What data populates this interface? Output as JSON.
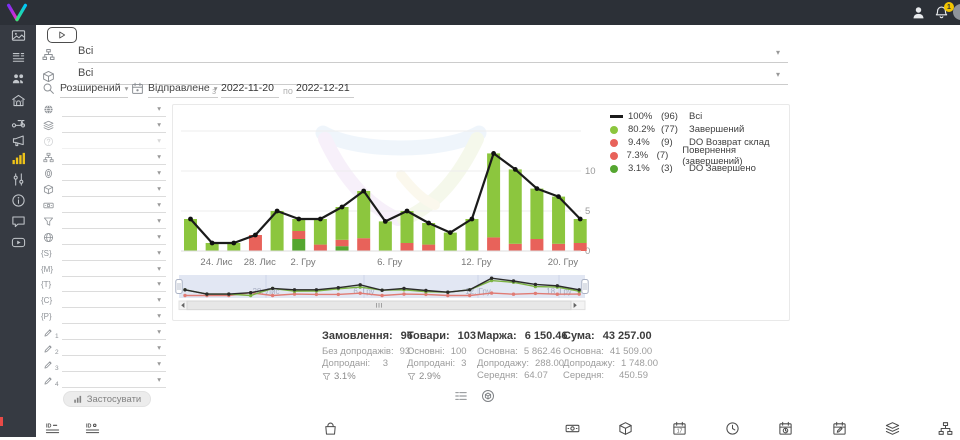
{
  "topbar": {
    "notifications": {
      "count": "1"
    },
    "play_button": {
      "icon": "play-icon"
    },
    "category_select": {
      "icon": "sitemap-icon",
      "value": "Всі"
    },
    "product_select": {
      "icon": "package-icon",
      "value": "Всі"
    },
    "search": {
      "icon": "search-icon",
      "mode": "Розширений"
    },
    "date_filter": {
      "icon": "calendar-icon",
      "type_label": "Відправлене",
      "from_label": "з",
      "from": "2022-11-20",
      "to_label": "по",
      "to": "2022-12-21"
    }
  },
  "sidebar": {
    "active": "analytics",
    "items": [
      {
        "name": "gallery",
        "icon": "gallery-icon"
      },
      {
        "name": "feed",
        "icon": "orders-list-icon"
      },
      {
        "name": "customers",
        "icon": "customers-icon"
      },
      {
        "name": "market",
        "icon": "storefront-icon"
      },
      {
        "name": "delivery",
        "icon": "scooter-icon"
      },
      {
        "name": "marketing",
        "icon": "megaphone-icon"
      },
      {
        "name": "analytics",
        "icon": "bar-chart-icon"
      },
      {
        "name": "settings",
        "icon": "sliders-icon"
      },
      {
        "name": "info",
        "icon": "info-icon"
      },
      {
        "name": "chat",
        "icon": "chat-icon"
      },
      {
        "name": "tutorials",
        "icon": "play-icon"
      }
    ]
  },
  "filters": {
    "apply_label": "Застосувати",
    "rows": [
      {
        "icon": "globe-filled-icon"
      },
      {
        "icon": "layers-icon"
      },
      {
        "icon": "status-icon",
        "disabled": true
      },
      {
        "icon": "sitemap-icon"
      },
      {
        "icon": "badge-icon"
      },
      {
        "icon": "package-icon"
      },
      {
        "icon": "banknote-icon"
      },
      {
        "icon": "funnel-icon"
      },
      {
        "icon": "globe-icon"
      },
      {
        "icon": "brace-s-icon",
        "glyph": "{S}"
      },
      {
        "icon": "brace-m-icon",
        "glyph": "{M}"
      },
      {
        "icon": "brace-t-icon",
        "glyph": "{T}"
      },
      {
        "icon": "brace-c-icon",
        "glyph": "{C}"
      },
      {
        "icon": "brace-p-icon",
        "glyph": "{P}"
      },
      {
        "icon": "pencil-icon",
        "sub": "1"
      },
      {
        "icon": "pencil-icon",
        "sub": "2"
      },
      {
        "icon": "pencil-icon",
        "sub": "3"
      },
      {
        "icon": "pencil-icon",
        "sub": "4"
      }
    ]
  },
  "chart_data": {
    "type": "stacked-bar+line",
    "title": "",
    "ylim": [
      0,
      15
    ],
    "yticks": [
      "0",
      "5",
      "10"
    ],
    "grid": true,
    "legend_position": "top-right",
    "colors": {
      "green": "#8CC63E",
      "red": "#E8625A",
      "darkgreen": "#55A630",
      "line": "#1b1b1b"
    },
    "legend": [
      {
        "swatch": "line",
        "color": "#1b1b1b",
        "pct": "100%",
        "count": "(96)",
        "label": "Всі"
      },
      {
        "swatch": "dot",
        "color": "#8CC63E",
        "pct": "80.2%",
        "count": "(77)",
        "label": "Завершений"
      },
      {
        "swatch": "dot",
        "color": "#E8625A",
        "pct": "9.4%",
        "count": "(9)",
        "label": "DO Возврат склад"
      },
      {
        "swatch": "dot",
        "color": "#E8625A",
        "pct": "7.3%",
        "count": "(7)",
        "label": "Повернення (завершений)"
      },
      {
        "swatch": "dot",
        "color": "#55A630",
        "pct": "3.1%",
        "count": "(3)",
        "label": "DO Завершено"
      }
    ],
    "bars": [
      {
        "segments": [
          [
            "green",
            4
          ]
        ]
      },
      {
        "segments": [
          [
            "green",
            1
          ]
        ]
      },
      {
        "segments": [
          [
            "green",
            1
          ]
        ]
      },
      {
        "segments": [
          [
            "red",
            2
          ]
        ]
      },
      {
        "segments": [
          [
            "green",
            5
          ]
        ]
      },
      {
        "segments": [
          [
            "darkgreen",
            1.5
          ],
          [
            "red",
            1
          ],
          [
            "green",
            1.5
          ]
        ]
      },
      {
        "segments": [
          [
            "red",
            0.8
          ],
          [
            "green",
            3.2
          ]
        ]
      },
      {
        "segments": [
          [
            "darkgreen",
            0.6
          ],
          [
            "red",
            0.8
          ],
          [
            "green",
            4.1
          ]
        ]
      },
      {
        "segments": [
          [
            "red",
            1.6
          ],
          [
            "green",
            5.9
          ]
        ]
      },
      {
        "segments": [
          [
            "green",
            3.7
          ]
        ]
      },
      {
        "segments": [
          [
            "red",
            1
          ],
          [
            "green",
            4
          ]
        ]
      },
      {
        "segments": [
          [
            "red",
            0.8
          ],
          [
            "green",
            2.7
          ]
        ]
      },
      {
        "segments": [
          [
            "green",
            2.3
          ]
        ]
      },
      {
        "segments": [
          [
            "green",
            4
          ]
        ]
      },
      {
        "segments": [
          [
            "red",
            1.7
          ],
          [
            "green",
            10.5
          ]
        ]
      },
      {
        "segments": [
          [
            "red",
            0.9
          ],
          [
            "green",
            9.3
          ]
        ]
      },
      {
        "segments": [
          [
            "red",
            1.5
          ],
          [
            "green",
            6.3
          ]
        ]
      },
      {
        "segments": [
          [
            "red",
            0.9
          ],
          [
            "green",
            5.9
          ]
        ]
      },
      {
        "segments": [
          [
            "red",
            1
          ],
          [
            "green",
            3
          ]
        ]
      }
    ],
    "line_series": {
      "name": "Всі",
      "values": [
        4,
        1,
        1,
        2,
        5,
        4,
        4,
        5.5,
        7.5,
        3.7,
        5,
        3.5,
        2.3,
        4,
        12.2,
        10.2,
        7.8,
        6.8,
        4
      ]
    },
    "x_ticks": [
      {
        "label": "24. Лис",
        "i": 1.2
      },
      {
        "label": "28. Лис",
        "i": 3.2
      },
      {
        "label": "2. Гру",
        "i": 5.2
      },
      {
        "label": "6. Гру",
        "i": 9.2
      },
      {
        "label": "12. Гру",
        "i": 13.2
      },
      {
        "label": "20. Гру",
        "i": 17.2
      }
    ],
    "navigator": {
      "labels": [
        {
          "t": "28. Лис",
          "x": 93
        },
        {
          "t": "6. Гру",
          "x": 191
        },
        {
          "t": "12. Гру",
          "x": 305
        },
        {
          "t": "18. Гру",
          "x": 386
        }
      ]
    }
  },
  "stats": [
    {
      "title": "Замовлення:",
      "value": "96",
      "rows": [
        {
          "label": "Без допродажів:",
          "value": "93"
        },
        {
          "label": "Допродані:",
          "value": "3"
        }
      ],
      "pct": "3.1%"
    },
    {
      "title": "Товари:",
      "value": "103",
      "rows": [
        {
          "label": "Основні:",
          "value": "100"
        },
        {
          "label": "Допродані:",
          "value": "3"
        }
      ],
      "pct": "2.9%"
    },
    {
      "title": "Маржа:",
      "value": "6 150.46",
      "rows": [
        {
          "label": "Основна:",
          "value": "5 862.46"
        },
        {
          "label": "Допродажу:",
          "value": "288.00"
        },
        {
          "label": "Середня:",
          "value": "64.07"
        }
      ]
    },
    {
      "title": "Сума:",
      "value": "43 257.00",
      "rows": [
        {
          "label": "Основна:",
          "value": "41 509.00"
        },
        {
          "label": "Допродажу:",
          "value": "1 748.00"
        },
        {
          "label": "Середня:",
          "value": "450.59"
        }
      ]
    }
  ],
  "view_toggles": [
    {
      "icon": "list-view-icon"
    },
    {
      "icon": "package-view-icon"
    }
  ],
  "bottom_toolbar": {
    "items": [
      {
        "icon": "id-sort-icon"
      },
      {
        "icon": "id-status-icon"
      },
      {
        "icon": "bag-icon"
      },
      {
        "icon": "money-icon"
      },
      {
        "icon": "package-icon"
      },
      {
        "icon": "calendar-date-icon"
      },
      {
        "icon": "clock-icon"
      },
      {
        "icon": "calendar-clock-icon"
      },
      {
        "icon": "calendar-edit-icon"
      },
      {
        "icon": "layers-icon"
      },
      {
        "icon": "sitemap-icon"
      }
    ]
  }
}
